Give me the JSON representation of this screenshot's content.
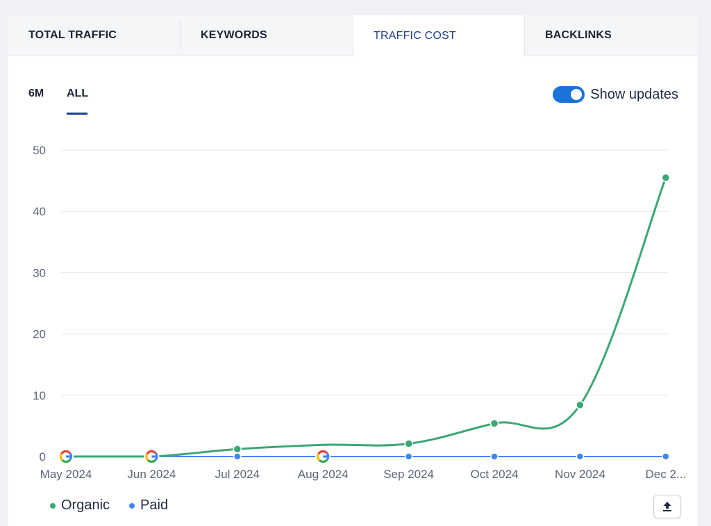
{
  "tabs": [
    {
      "label": "TOTAL TRAFFIC",
      "active": false
    },
    {
      "label": "KEYWORDS",
      "active": false
    },
    {
      "label": "TRAFFIC COST",
      "active": true
    },
    {
      "label": "BACKLINKS",
      "active": false
    }
  ],
  "range": {
    "options": [
      "6M",
      "ALL"
    ],
    "selected": "ALL"
  },
  "toggle": {
    "label": "Show updates",
    "on": true
  },
  "legend": [
    {
      "name": "Organic",
      "color": "#3aa776"
    },
    {
      "name": "Paid",
      "color": "#4285f4"
    }
  ],
  "export_icon": "upload-icon",
  "colors": {
    "accent": "#1d3d8f",
    "toggle": "#1a73d9",
    "organic": "#3aa776",
    "paid": "#4285f4"
  },
  "chart_data": {
    "type": "line",
    "categories": [
      "May 2024",
      "Jun 2024",
      "Jul 2024",
      "Aug 2024",
      "Sep 2024",
      "Oct 2024",
      "Nov 2024",
      "Dec 2..."
    ],
    "series": [
      {
        "name": "Organic",
        "values": [
          0,
          0,
          1.2,
          1.9,
          2.1,
          5.4,
          8.4,
          45.5
        ]
      },
      {
        "name": "Paid",
        "values": [
          0,
          0,
          0,
          0,
          0,
          0,
          0,
          0
        ]
      }
    ],
    "yticks": [
      0,
      10,
      20,
      30,
      40,
      50
    ],
    "ylim": [
      0,
      50
    ],
    "google_update_markers": [
      "May 2024",
      "Jun 2024",
      "Aug 2024"
    ],
    "grid": true,
    "legend_position": "bottom-left"
  }
}
